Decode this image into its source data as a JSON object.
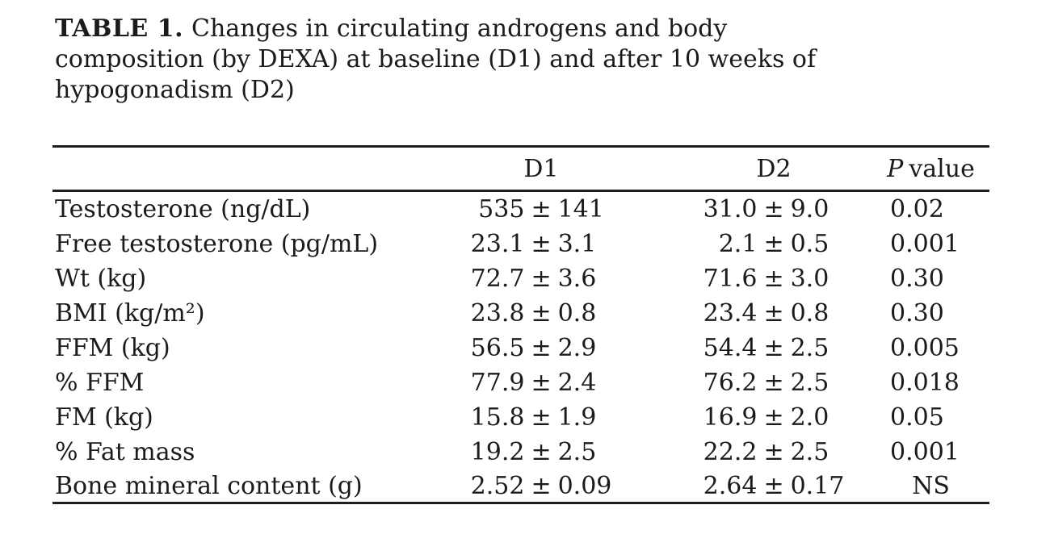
{
  "page": {
    "background": "#ffffff",
    "text_color": "#1b1b1b",
    "rule_color": "#1e1e1e"
  },
  "title": {
    "label": "TABLE 1.",
    "line1_rest": "Changes in circulating androgens and body",
    "line2": "composition (by DEXA) at baseline (D1) and after 10 weeks of",
    "line3": "hypogonadism (D2)"
  },
  "table": {
    "pm": "±",
    "ns_label": "NS",
    "header": {
      "d1": "D1",
      "d2": "D2",
      "p_italic": "P",
      "p_rest": "value"
    },
    "rows": [
      {
        "label": "Testosterone (ng/dL)",
        "d1_mean": "535",
        "d1_sd": "141",
        "d2_mean": "31.0",
        "d2_sd": "9.0",
        "p": "0.02"
      },
      {
        "label": "Free testosterone (pg/mL)",
        "d1_mean": "23.1",
        "d1_sd": "3.1",
        "d2_mean": "2.1",
        "d2_sd": "0.5",
        "p": "0.001"
      },
      {
        "label": "Wt (kg)",
        "d1_mean": "72.7",
        "d1_sd": "3.6",
        "d2_mean": "71.6",
        "d2_sd": "3.0",
        "p": "0.30"
      },
      {
        "label": "BMI (kg/m²)",
        "d1_mean": "23.8",
        "d1_sd": "0.8",
        "d2_mean": "23.4",
        "d2_sd": "0.8",
        "p": "0.30"
      },
      {
        "label": "FFM (kg)",
        "d1_mean": "56.5",
        "d1_sd": "2.9",
        "d2_mean": "54.4",
        "d2_sd": "2.5",
        "p": "0.005"
      },
      {
        "label": "% FFM",
        "d1_mean": "77.9",
        "d1_sd": "2.4",
        "d2_mean": "76.2",
        "d2_sd": "2.5",
        "p": "0.018"
      },
      {
        "label": "FM (kg)",
        "d1_mean": "15.8",
        "d1_sd": "1.9",
        "d2_mean": "16.9",
        "d2_sd": "2.0",
        "p": "0.05"
      },
      {
        "label": "% Fat mass",
        "d1_mean": "19.2",
        "d1_sd": "2.5",
        "d2_mean": "22.2",
        "d2_sd": "2.5",
        "p": "0.001"
      },
      {
        "label": "Bone mineral content (g)",
        "d1_mean": "2.52",
        "d1_sd": "0.09",
        "d2_mean": "2.64",
        "d2_sd": "0.17",
        "p": "NS"
      }
    ]
  }
}
